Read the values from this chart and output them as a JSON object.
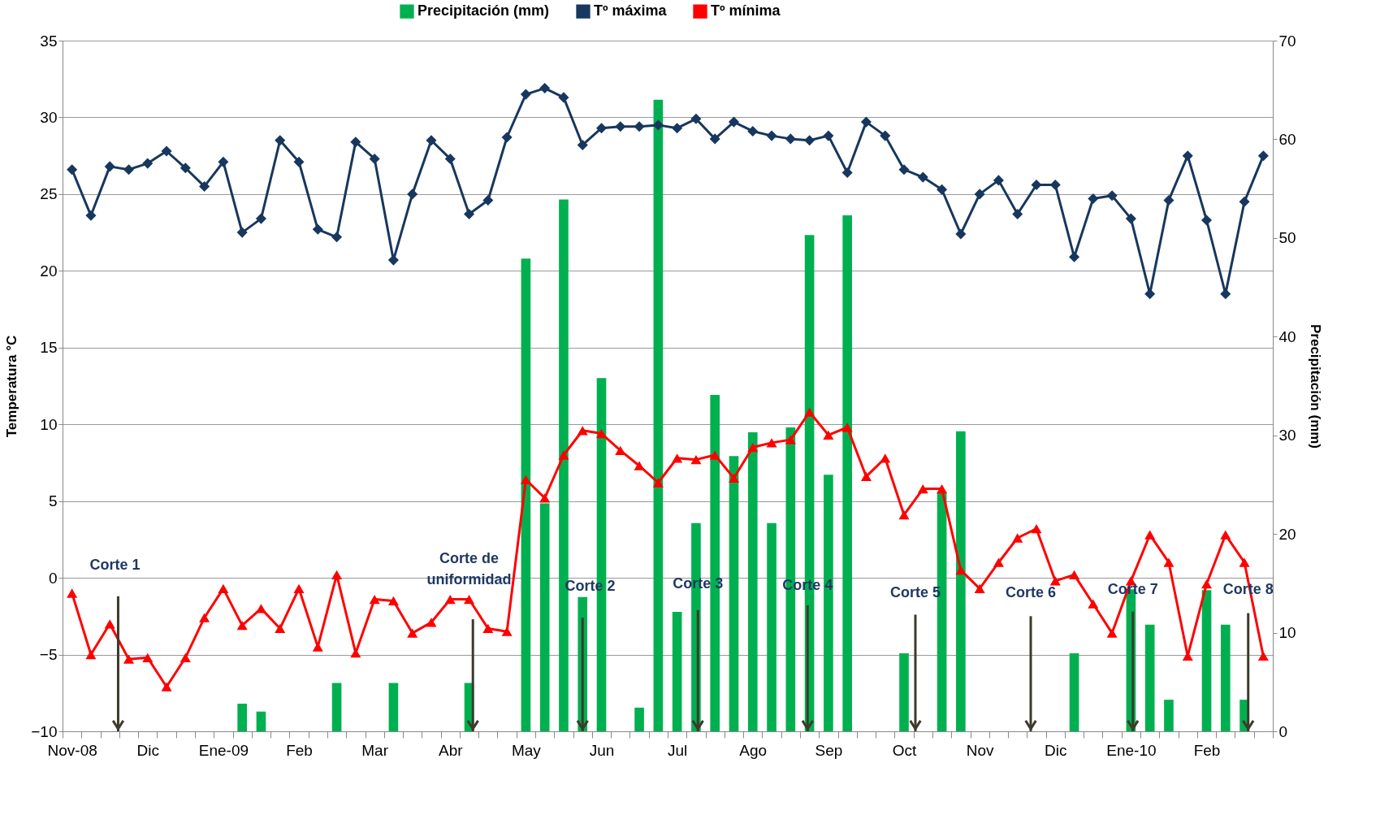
{
  "chart_data": {
    "type": "line",
    "xlabel": null,
    "ylabel": "Temperatura °C",
    "y2label": "Precipitación (mm)",
    "categories": [
      "Nov-08",
      null,
      null,
      null,
      "Dic",
      null,
      null,
      null,
      "Ene-09",
      null,
      null,
      null,
      "Feb",
      null,
      null,
      null,
      "Mar",
      null,
      null,
      null,
      "Abr",
      null,
      null,
      null,
      "May",
      null,
      null,
      null,
      "Jun",
      null,
      null,
      null,
      "Jul",
      null,
      null,
      null,
      "Ago",
      null,
      null,
      null,
      "Sep",
      null,
      null,
      null,
      "Oct",
      null,
      null,
      null,
      "Nov",
      null,
      null,
      null,
      "Dic",
      null,
      null,
      null,
      "Ene-10",
      null,
      null,
      null,
      "Feb",
      null,
      null,
      null
    ],
    "series": [
      {
        "name": "Precipitación (mm)",
        "type": "bar",
        "axis": "y2",
        "color": "#00b050",
        "values": [
          null,
          null,
          null,
          null,
          null,
          null,
          null,
          null,
          null,
          2.8,
          2.0,
          null,
          null,
          null,
          4.9,
          null,
          null,
          4.9,
          null,
          null,
          null,
          4.9,
          null,
          null,
          47.9,
          23.1,
          53.9,
          13.6,
          35.8,
          null,
          2.4,
          64.0,
          12.1,
          21.1,
          34.1,
          27.9,
          30.3,
          21.1,
          30.8,
          50.3,
          26.0,
          52.3,
          null,
          null,
          7.9,
          null,
          24.2,
          30.4,
          null,
          null,
          null,
          null,
          null,
          7.9,
          null,
          null,
          14.4,
          10.8,
          3.2,
          null,
          14.3,
          10.8,
          3.2,
          null
        ]
      },
      {
        "name": "Tº máxima",
        "marker": "diamond",
        "color": "#17375e",
        "values": [
          26.6,
          23.6,
          26.8,
          26.6,
          27.0,
          27.8,
          26.7,
          25.5,
          27.1,
          22.5,
          23.4,
          28.5,
          27.1,
          22.7,
          22.2,
          28.4,
          27.3,
          20.7,
          25.0,
          28.5,
          27.3,
          23.7,
          24.6,
          28.7,
          31.5,
          31.9,
          31.3,
          28.2,
          29.3,
          29.4,
          29.4,
          29.5,
          29.3,
          29.9,
          28.6,
          29.7,
          29.1,
          28.8,
          28.6,
          28.5,
          28.8,
          26.4,
          29.7,
          28.8,
          26.6,
          26.1,
          25.3,
          22.4,
          25.0,
          25.9,
          23.7,
          25.6,
          25.6,
          20.9,
          24.7,
          24.9,
          23.4,
          18.5,
          24.6,
          27.5,
          23.3,
          18.5,
          24.5,
          27.5
        ]
      },
      {
        "name": "Tº mínima",
        "marker": "triangle",
        "color": "#ff0000",
        "values": [
          -1.0,
          -5.0,
          -3.0,
          -5.3,
          -5.2,
          -7.1,
          -5.2,
          -2.6,
          -0.7,
          -3.1,
          -2.0,
          -3.3,
          -0.7,
          -4.5,
          0.2,
          -4.9,
          -1.4,
          -1.5,
          -3.6,
          -2.9,
          -1.4,
          -1.4,
          -3.3,
          -3.5,
          6.4,
          5.2,
          8.0,
          9.6,
          9.4,
          8.3,
          7.3,
          6.2,
          7.8,
          7.7,
          8.0,
          6.5,
          8.5,
          8.8,
          9.0,
          10.8,
          9.3,
          9.8,
          6.6,
          7.8,
          4.1,
          5.8,
          5.8,
          0.5,
          -0.7,
          1.0,
          2.6,
          3.2,
          -0.2,
          0.2,
          -1.7,
          -3.6,
          -0.2,
          2.8,
          1.0,
          -5.1,
          -0.4,
          2.8,
          1.0,
          -5.1
        ]
      }
    ],
    "ylim": [
      -10,
      35
    ],
    "yticks": [
      -10,
      -5,
      0,
      5,
      10,
      15,
      20,
      25,
      30,
      35
    ],
    "y2lim": [
      0,
      70
    ],
    "y2ticks": [
      0,
      10,
      20,
      30,
      40,
      50,
      60,
      70
    ],
    "grid": "y",
    "legend": "top",
    "line_style": "solid",
    "annotations": [
      "Corte 1",
      "Corte de uniformidad",
      "Corte 2",
      {
        "text": "Corte 3",
        "y": -10
      },
      {
        "text": "Corte 4",
        "y": -10
      },
      "Corte 5",
      "Corte 6",
      {
        "text": "Corte 7",
        "y": -10
      },
      {
        "text": "Corte 8",
        "y": -10
      }
    ]
  }
}
